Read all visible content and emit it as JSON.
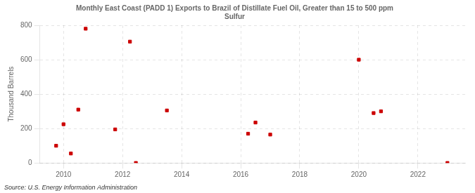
{
  "chart_data": {
    "type": "scatter",
    "title": "Monthly East Coast (PADD 1) Exports to Brazil of Distillate Fuel Oil, Greater than 15 to 500 ppm\nSulfur",
    "ylabel": "Thousand Barrels",
    "annotation": "Source: U.S. Energy Information Administration",
    "x": [
      2009.75,
      2010.0,
      2010.25,
      2010.5,
      2010.75,
      2011.75,
      2012.25,
      2012.45,
      2013.5,
      2016.25,
      2016.5,
      2017.0,
      2020.0,
      2020.5,
      2020.75,
      2023.0
    ],
    "values": [
      100,
      225,
      55,
      310,
      780,
      195,
      705,
      0,
      305,
      170,
      235,
      165,
      600,
      290,
      300,
      0
    ],
    "color": "#cc0000",
    "marker": "square",
    "xlim": [
      2009.2,
      2023.6
    ],
    "ylim": [
      0,
      800
    ],
    "xticks": [
      2010,
      2012,
      2014,
      2016,
      2018,
      2020,
      2022
    ],
    "yticks": [
      0,
      200,
      400,
      600,
      800
    ],
    "grid": true
  }
}
